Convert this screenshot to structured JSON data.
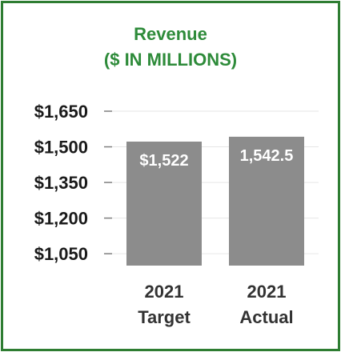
{
  "chart_data": {
    "type": "bar",
    "title": "Revenue",
    "subtitle": "($ IN MILLIONS)",
    "categories": [
      [
        "2021",
        "Target"
      ],
      [
        "2021",
        "Actual"
      ]
    ],
    "values": [
      1522,
      1542.5
    ],
    "data_labels": [
      "$1,522",
      "1,542.5"
    ],
    "ylim": [
      1000,
      1700
    ],
    "yticks": [
      1050,
      1200,
      1350,
      1500,
      1650
    ],
    "ytick_labels": [
      "$1,050",
      "$1,200",
      "$1,350",
      "$1,500",
      "$1,650"
    ],
    "xlabel": "",
    "ylabel": "",
    "grid": true,
    "legend": "none",
    "colors": {
      "bar": "#8c8c8c",
      "title": "#2e8b3a",
      "border": "#2e7d32",
      "grid": "#e6e6e6",
      "tick_mark": "#7f7f7f"
    }
  }
}
